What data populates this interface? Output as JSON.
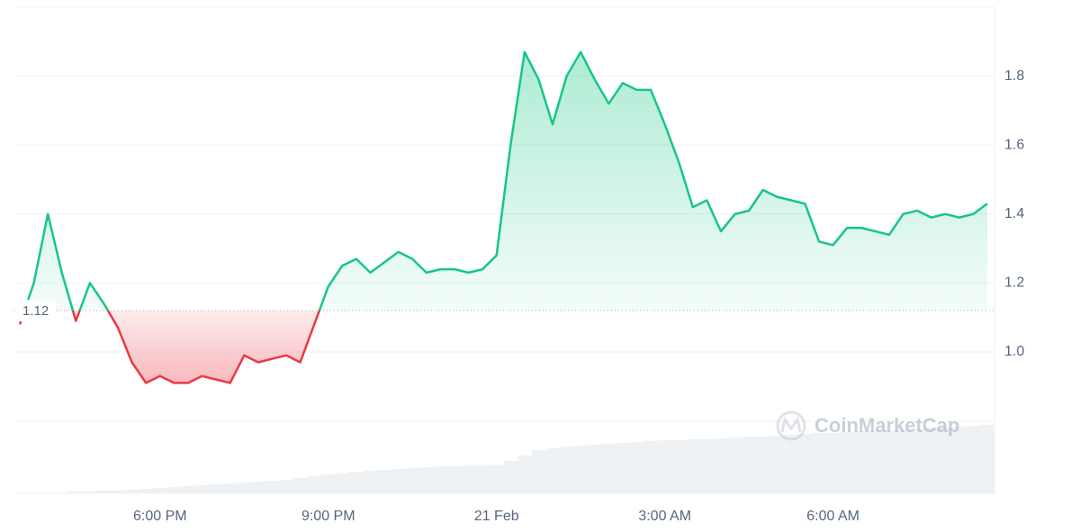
{
  "chart_data": {
    "type": "line",
    "categories": [
      null,
      null,
      null,
      null,
      null,
      null,
      null,
      null,
      null,
      null,
      "6:00 PM",
      null,
      null,
      null,
      null,
      null,
      null,
      null,
      null,
      null,
      null,
      null,
      "9:00 PM",
      null,
      null,
      null,
      null,
      null,
      null,
      null,
      null,
      null,
      null,
      null,
      "21 Feb",
      null,
      null,
      null,
      null,
      null,
      null,
      null,
      null,
      null,
      null,
      null,
      "3:00 AM",
      null,
      null,
      null,
      null,
      null,
      null,
      null,
      null,
      null,
      null,
      null,
      "6:00 AM",
      null,
      null,
      null,
      null,
      null,
      null,
      null,
      null,
      null,
      null,
      null
    ],
    "values": [
      1.08,
      1.2,
      1.4,
      1.23,
      1.09,
      1.2,
      1.14,
      1.07,
      0.97,
      0.91,
      0.93,
      0.91,
      0.91,
      0.93,
      0.92,
      0.91,
      0.99,
      0.97,
      0.98,
      0.99,
      0.97,
      1.08,
      1.19,
      1.25,
      1.27,
      1.23,
      1.26,
      1.29,
      1.27,
      1.23,
      1.24,
      1.24,
      1.23,
      1.24,
      1.28,
      1.6,
      1.87,
      1.79,
      1.66,
      1.8,
      1.87,
      1.79,
      1.72,
      1.78,
      1.76,
      1.76,
      1.66,
      1.55,
      1.42,
      1.44,
      1.35,
      1.4,
      1.41,
      1.47,
      1.45,
      1.44,
      1.43,
      1.32,
      1.31,
      1.36,
      1.36,
      1.35,
      1.34,
      1.4,
      1.41,
      1.39,
      1.4,
      1.39,
      1.4,
      1.43
    ],
    "volume": [
      0,
      0,
      1,
      1,
      2,
      2,
      3,
      3,
      4,
      5,
      6,
      7,
      8,
      9,
      10,
      11,
      12,
      13,
      14,
      15,
      17,
      19,
      21,
      22,
      24,
      25,
      26,
      27,
      28,
      29,
      30,
      30,
      31,
      31,
      32,
      36,
      42,
      48,
      50,
      52,
      53,
      54,
      55,
      56,
      57,
      58,
      59,
      59,
      60,
      60,
      61,
      62,
      63,
      63,
      64,
      65,
      66,
      67,
      67,
      68,
      69,
      70,
      70,
      71,
      72,
      73,
      73,
      74,
      75,
      76
    ],
    "color": "#16c784",
    "negative_color": "#ea3943",
    "baseline": 1.12,
    "ylim": [
      0.59,
      2.0
    ],
    "yticks": [
      {
        "value": 1,
        "label": "1.0"
      },
      1.2,
      1.4,
      1.6,
      1.8
    ],
    "grid": true,
    "watermark": "CoinMarketCap"
  }
}
